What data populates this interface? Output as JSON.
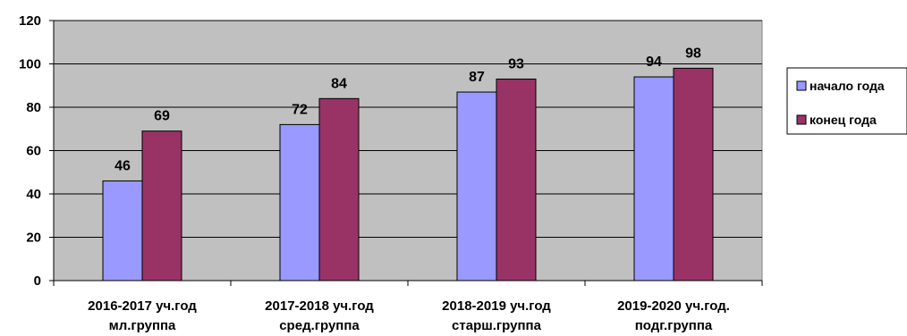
{
  "chart_data": {
    "type": "bar",
    "categories": [
      [
        "2016-2017 уч.год",
        "мл.группа"
      ],
      [
        "2017-2018 уч.год",
        "сред.группа"
      ],
      [
        "2018-2019 уч.год",
        "старш.группа"
      ],
      [
        "2019-2020 уч.год.",
        "подг.группа"
      ]
    ],
    "series": [
      {
        "name": "начало года",
        "values": [
          46,
          72,
          87,
          94
        ],
        "color": "#9999ff"
      },
      {
        "name": "конец года",
        "values": [
          69,
          84,
          93,
          98
        ],
        "color": "#993366"
      }
    ],
    "yticks": [
      "0",
      "20",
      "40",
      "60",
      "80",
      "100",
      "120"
    ],
    "ylim": [
      0,
      120
    ],
    "grid": true,
    "plot_background": "#c0c0c0",
    "legend_position": "right"
  }
}
